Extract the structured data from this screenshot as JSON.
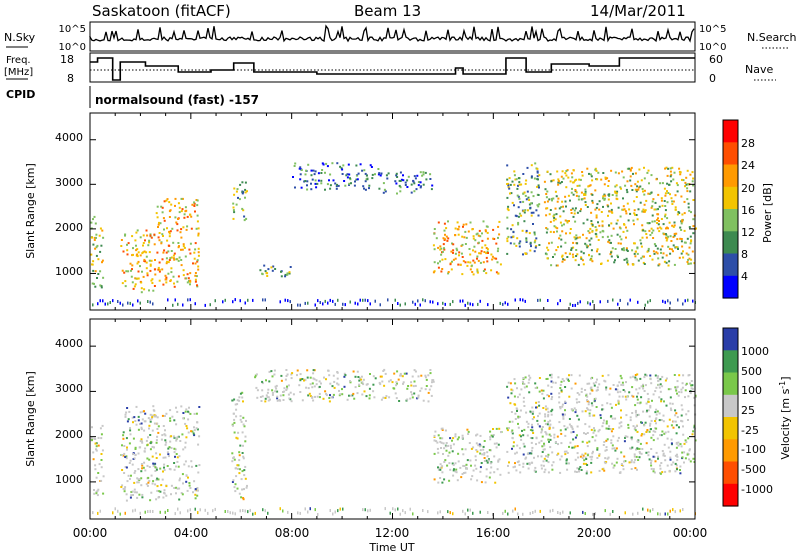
{
  "header": {
    "station": "Saskatoon (fitACF)",
    "beam": "Beam 13",
    "date": "14/Mar/2011"
  },
  "top_panels": {
    "nsky_label": "N.Sky",
    "nsky_ticks": [
      "10^5",
      "10^0"
    ],
    "nsearch_label": "N.Search",
    "nsearch_ticks": [
      "10^5",
      "10^0"
    ],
    "freq_label_1": "Freq.",
    "freq_label_2": "[MHz]",
    "freq_ticks": [
      "18",
      "8"
    ],
    "nave_label": "Nave",
    "nave_ticks": [
      "60",
      "0"
    ],
    "cpid_label": "CPID",
    "cpid_text": "normalsound (fast) -157"
  },
  "chart_data": [
    {
      "type": "heatmap",
      "title": "",
      "xlabel": "Time UT",
      "ylabel": "Slant Range [km]",
      "x_ticks": [
        "00:00",
        "04:00",
        "08:00",
        "12:00",
        "16:00",
        "20:00",
        "00:00"
      ],
      "y_ticks": [
        "1000",
        "2000",
        "3000",
        "4000"
      ],
      "xlim_hours": [
        0,
        24
      ],
      "ylim_km": [
        180,
        4600
      ],
      "colorbar": {
        "label": "Power [dB]",
        "ticks": [
          "28",
          "24",
          "20",
          "16",
          "12",
          "8",
          "4"
        ],
        "colors": [
          "#ff0000",
          "#ff4e00",
          "#ff9a00",
          "#f2c400",
          "#80c060",
          "#3d8a50",
          "#2d4ea8",
          "#0000ff"
        ]
      },
      "echo_regions": [
        {
          "t0": 0.0,
          "t1": 0.5,
          "r0": 700,
          "r1": 2300,
          "level": 4
        },
        {
          "t0": 1.2,
          "t1": 2.6,
          "r0": 600,
          "r1": 2000,
          "level": 3
        },
        {
          "t0": 2.6,
          "t1": 4.3,
          "r0": 700,
          "r1": 2700,
          "level": 3
        },
        {
          "t0": 5.6,
          "t1": 6.2,
          "r0": 2200,
          "r1": 3100,
          "level": 5
        },
        {
          "t0": 6.5,
          "t1": 8.0,
          "r0": 900,
          "r1": 1200,
          "level": 5
        },
        {
          "t0": 8.0,
          "t1": 11.5,
          "r0": 2900,
          "r1": 3500,
          "level": 6
        },
        {
          "t0": 11.5,
          "t1": 13.6,
          "r0": 2800,
          "r1": 3300,
          "level": 6
        },
        {
          "t0": 13.6,
          "t1": 16.3,
          "r0": 1000,
          "r1": 2200,
          "level": 3
        },
        {
          "t0": 16.5,
          "t1": 17.8,
          "r0": 1400,
          "r1": 3500,
          "level": 5
        },
        {
          "t0": 18.0,
          "t1": 24.0,
          "r0": 1200,
          "r1": 3400,
          "level": 4
        }
      ]
    },
    {
      "type": "heatmap",
      "title": "",
      "xlabel": "Time UT",
      "ylabel": "Slant Range [km]",
      "x_ticks": [
        "00:00",
        "04:00",
        "08:00",
        "12:00",
        "16:00",
        "20:00",
        "00:00"
      ],
      "y_ticks": [
        "1000",
        "2000",
        "3000",
        "4000"
      ],
      "xlim_hours": [
        0,
        24
      ],
      "ylim_km": [
        180,
        4600
      ],
      "colorbar": {
        "label": "Velocity [m s",
        "label_sup": "-1",
        "label_end": "]",
        "ticks": [
          "1000",
          "500",
          "100",
          "25",
          "-25",
          "-100",
          "-500",
          "-1000"
        ],
        "colors": [
          "#2a3ea8",
          "#3e9a50",
          "#7ac84a",
          "#c8c8c8",
          "#f2c400",
          "#ff9a00",
          "#ff4e00",
          "#ff0000"
        ]
      },
      "echo_regions": [
        {
          "t0": 0.0,
          "t1": 0.5,
          "r0": 700,
          "r1": 2300,
          "level": 3
        },
        {
          "t0": 1.2,
          "t1": 4.3,
          "r0": 600,
          "r1": 2700,
          "level": 2
        },
        {
          "t0": 5.6,
          "t1": 6.2,
          "r0": 600,
          "r1": 3000,
          "level": 3
        },
        {
          "t0": 6.5,
          "t1": 13.6,
          "r0": 2800,
          "r1": 3500,
          "level": 3
        },
        {
          "t0": 13.6,
          "t1": 16.3,
          "r0": 1000,
          "r1": 2200,
          "level": 3
        },
        {
          "t0": 16.5,
          "t1": 24.0,
          "r0": 1200,
          "r1": 3400,
          "level": 3
        }
      ]
    }
  ]
}
